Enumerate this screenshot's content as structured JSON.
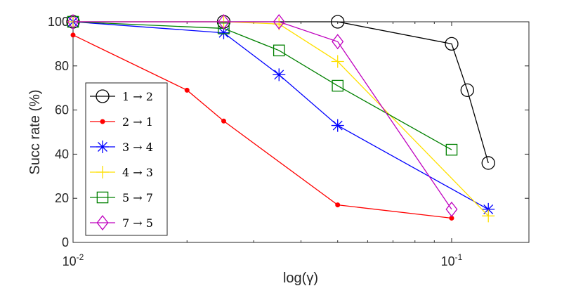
{
  "chart_data": {
    "type": "line",
    "xscale": "log",
    "xlim": [
      0.01,
      0.16
    ],
    "ylim": [
      0,
      100
    ],
    "xlabel": "log(γ)",
    "ylabel": "Succ rate (%)",
    "xticks": [
      {
        "value": 0.01,
        "base": "10",
        "exp": "-2"
      },
      {
        "value": 0.1,
        "base": "10",
        "exp": "-1"
      }
    ],
    "yticks": [
      0,
      20,
      40,
      60,
      80,
      100
    ],
    "legend_position": "center-left",
    "series": [
      {
        "name": "1 → 2",
        "color": "#000000",
        "marker": "circle",
        "x": [
          0.01,
          0.025,
          0.05,
          0.1,
          0.11,
          0.125
        ],
        "y": [
          100,
          100,
          100,
          90,
          69,
          36
        ]
      },
      {
        "name": "2 → 1",
        "color": "#ff0000",
        "marker": "dot",
        "x": [
          0.01,
          0.02,
          0.025,
          0.05,
          0.1
        ],
        "y": [
          94,
          69,
          55,
          17,
          11
        ]
      },
      {
        "name": "3 → 4",
        "color": "#0000ff",
        "marker": "asterisk",
        "x": [
          0.01,
          0.025,
          0.035,
          0.05,
          0.125
        ],
        "y": [
          100,
          95,
          76,
          53,
          15
        ]
      },
      {
        "name": "4 → 3",
        "color": "#ffe000",
        "marker": "plus",
        "x": [
          0.01,
          0.025,
          0.035,
          0.05,
          0.125
        ],
        "y": [
          100,
          100,
          99,
          82,
          12
        ]
      },
      {
        "name": "5 → 7",
        "color": "#008000",
        "marker": "square",
        "x": [
          0.01,
          0.025,
          0.035,
          0.05,
          0.1
        ],
        "y": [
          100,
          97,
          87,
          71,
          42
        ]
      },
      {
        "name": "7 → 5",
        "color": "#bf00bf",
        "marker": "diamond",
        "x": [
          0.01,
          0.025,
          0.035,
          0.05,
          0.1
        ],
        "y": [
          100,
          100,
          100,
          91,
          15
        ]
      }
    ]
  }
}
